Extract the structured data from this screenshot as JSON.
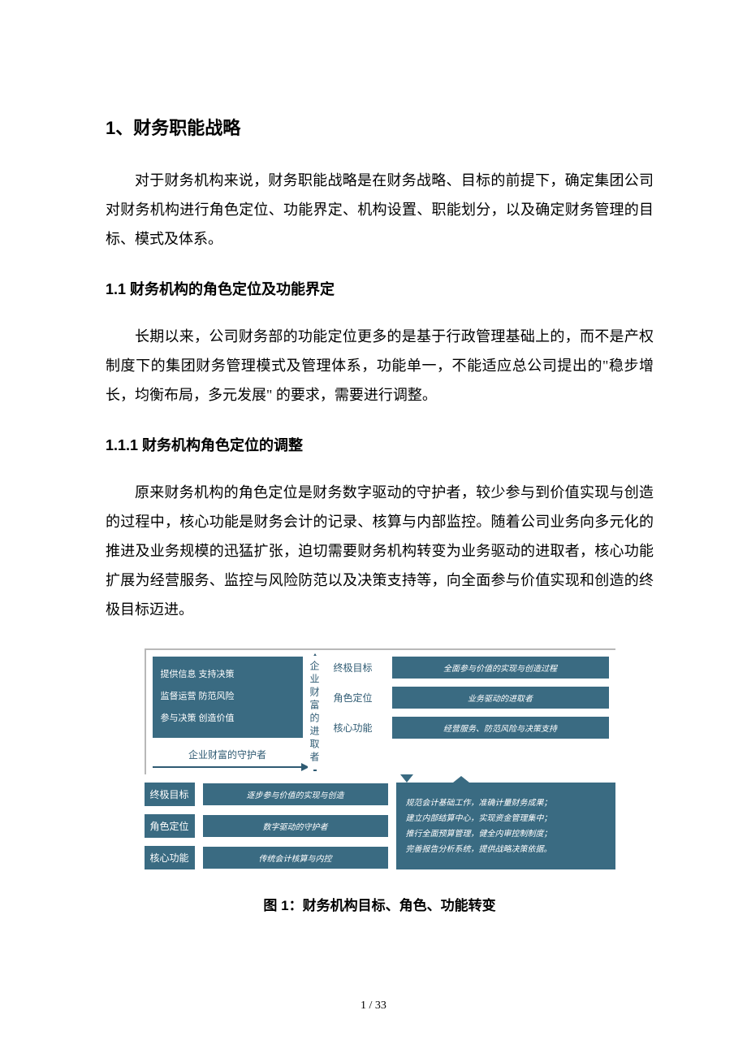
{
  "h1": "1、财务职能战略",
  "p1": "对于财务机构来说，财务职能战略是在财务战略、目标的前提下，确定集团公司对财务机构进行角色定位、功能界定、机构设置、职能划分，以及确定财务管理的目标、模式及体系。",
  "h2": "1.1 财务机构的角色定位及功能界定",
  "p2": "长期以来，公司财务部的功能定位更多的是基于行政管理基础上的，而不是产权制度下的集团财务管理模式及管理体系，功能单一，不能适应总公司提出的\"稳步增长，均衡布局，多元发展\" 的要求，需要进行调整。",
  "h3": "1.1.1 财务机构角色定位的调整",
  "p3": "原来财务机构的角色定位是财务数字驱动的守护者，较少参与到价值实现与创造的过程中，核心功能是财务会计的记录、核算与内部监控。随着公司业务向多元化的推进及业务规模的迅猛扩张，迫切需要财务机构转变为业务驱动的进取者，核心功能扩展为经营服务、监控与风险防范以及决策支持等，向全面参与价值实现和创造的终极目标迈进。",
  "caption": "图 1：财务机构目标、角色、功能转变",
  "page_number": "1  /  33",
  "diagram": {
    "colors": {
      "blue": "#3a6b82",
      "border_gray": "#b8b8b8",
      "label_text": "#2f5b73",
      "white": "#ffffff"
    },
    "fonts": {
      "pill_fontsize": 10,
      "label_fontsize": 12,
      "pill_style": "italic"
    },
    "left_block": {
      "lines": [
        "提供信息 支持决策",
        "监督运营 防范风险",
        "参与决策 创造价值"
      ]
    },
    "guardian_text": "企业财富的守护者",
    "vertical_label": "企业财富的进取者",
    "upper_rows": [
      {
        "label": "终极目标",
        "pill": "全面参与价值的实现与创造过程"
      },
      {
        "label": "角色定位",
        "pill": "业务驱动的进取者"
      },
      {
        "label": "核心功能",
        "pill": "经营服务、防范风险与决策支持"
      }
    ],
    "lower_rows": [
      {
        "label": "终极目标",
        "pill": "逐步参与价值的实现与创造"
      },
      {
        "label": "角色定位",
        "pill": "数字驱动的守护者"
      },
      {
        "label": "核心功能",
        "pill": "传统会计核算与内控"
      }
    ],
    "lower_right": [
      "规范会计基础工作，准确计量财务成果；",
      "建立内部结算中心，实现资金管理集中；",
      "推行全面预算管理，健全内审控制制度；",
      "完善报告分析系统，提供战略决策依据。"
    ]
  }
}
